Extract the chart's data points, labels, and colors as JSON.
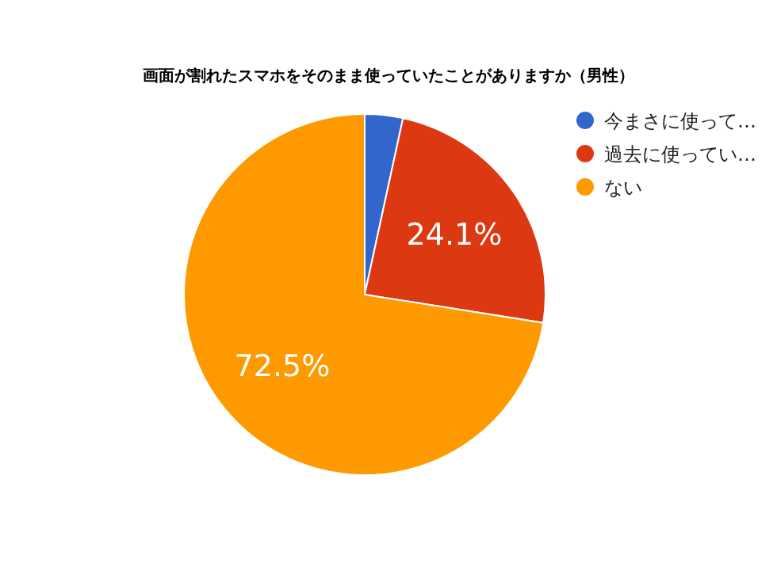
{
  "chart_data": {
    "type": "pie",
    "title": "画面が割れたスマホをそのまま使っていたことがありますか（男性）",
    "categories": [
      "今まさに使って…",
      "過去に使ってい…",
      "ない"
    ],
    "values": [
      3.4,
      24.1,
      72.5
    ],
    "colors": [
      "#3366cc",
      "#dc3912",
      "#ff9900"
    ],
    "value_labels": [
      null,
      "24.1%",
      "72.5%"
    ],
    "legend": "right"
  }
}
